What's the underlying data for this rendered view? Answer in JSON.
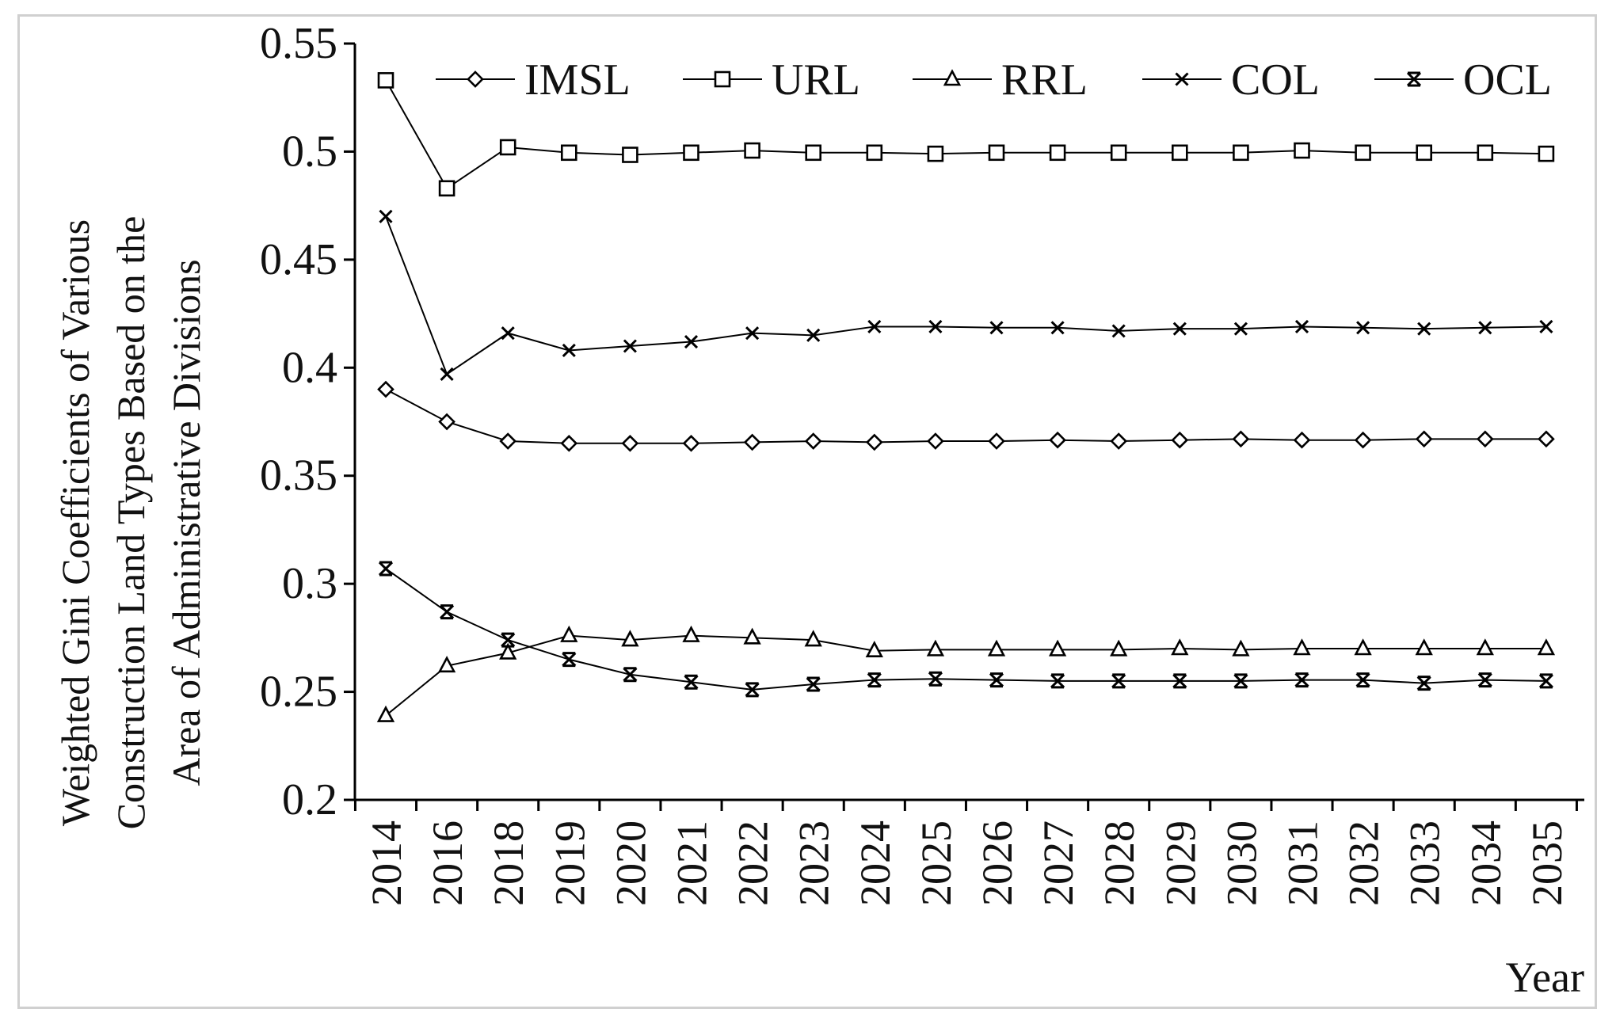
{
  "chart_data": {
    "type": "line",
    "title": "",
    "ylabel_lines": [
      "Weighted Gini Coefficients of Various",
      "Construction Land Types Based on the",
      "Area of Administrative Divisions"
    ],
    "xlabel": "Year",
    "x": [
      "2014",
      "2016",
      "2018",
      "2019",
      "2020",
      "2021",
      "2022",
      "2023",
      "2024",
      "2025",
      "2026",
      "2027",
      "2028",
      "2029",
      "2030",
      "2031",
      "2032",
      "2033",
      "2034",
      "2035"
    ],
    "ylim": [
      0.2,
      0.55
    ],
    "yticks": [
      "0.2",
      "0.25",
      "0.3",
      "0.35",
      "0.4",
      "0.45",
      "0.5",
      "0.55"
    ],
    "legend_position": "top",
    "grid": false,
    "series": [
      {
        "name": "IMSL",
        "marker": "diamond",
        "values": [
          0.39,
          0.375,
          0.366,
          0.365,
          0.365,
          0.365,
          0.3655,
          0.366,
          0.3655,
          0.366,
          0.366,
          0.3665,
          0.366,
          0.3665,
          0.367,
          0.3665,
          0.3665,
          0.367,
          0.367,
          0.367
        ]
      },
      {
        "name": "URL",
        "marker": "square",
        "values": [
          0.533,
          0.483,
          0.502,
          0.4995,
          0.4985,
          0.4995,
          0.5005,
          0.4995,
          0.4995,
          0.499,
          0.4995,
          0.4995,
          0.4995,
          0.4995,
          0.4995,
          0.5005,
          0.4995,
          0.4995,
          0.4995,
          0.499
        ]
      },
      {
        "name": "RRL",
        "marker": "triangle",
        "values": [
          0.239,
          0.262,
          0.268,
          0.276,
          0.274,
          0.276,
          0.275,
          0.274,
          0.269,
          0.2695,
          0.2695,
          0.2695,
          0.2695,
          0.27,
          0.2695,
          0.27,
          0.27,
          0.27,
          0.27,
          0.27
        ]
      },
      {
        "name": "COL",
        "marker": "x",
        "values": [
          0.47,
          0.397,
          0.416,
          0.408,
          0.41,
          0.412,
          0.416,
          0.415,
          0.419,
          0.419,
          0.4185,
          0.4185,
          0.417,
          0.418,
          0.418,
          0.419,
          0.4185,
          0.418,
          0.4185,
          0.419
        ]
      },
      {
        "name": "OCL",
        "marker": "star",
        "values": [
          0.307,
          0.287,
          0.274,
          0.265,
          0.258,
          0.2545,
          0.251,
          0.2535,
          0.2555,
          0.256,
          0.2555,
          0.255,
          0.255,
          0.255,
          0.255,
          0.2555,
          0.2555,
          0.254,
          0.2555,
          0.255
        ]
      }
    ]
  }
}
